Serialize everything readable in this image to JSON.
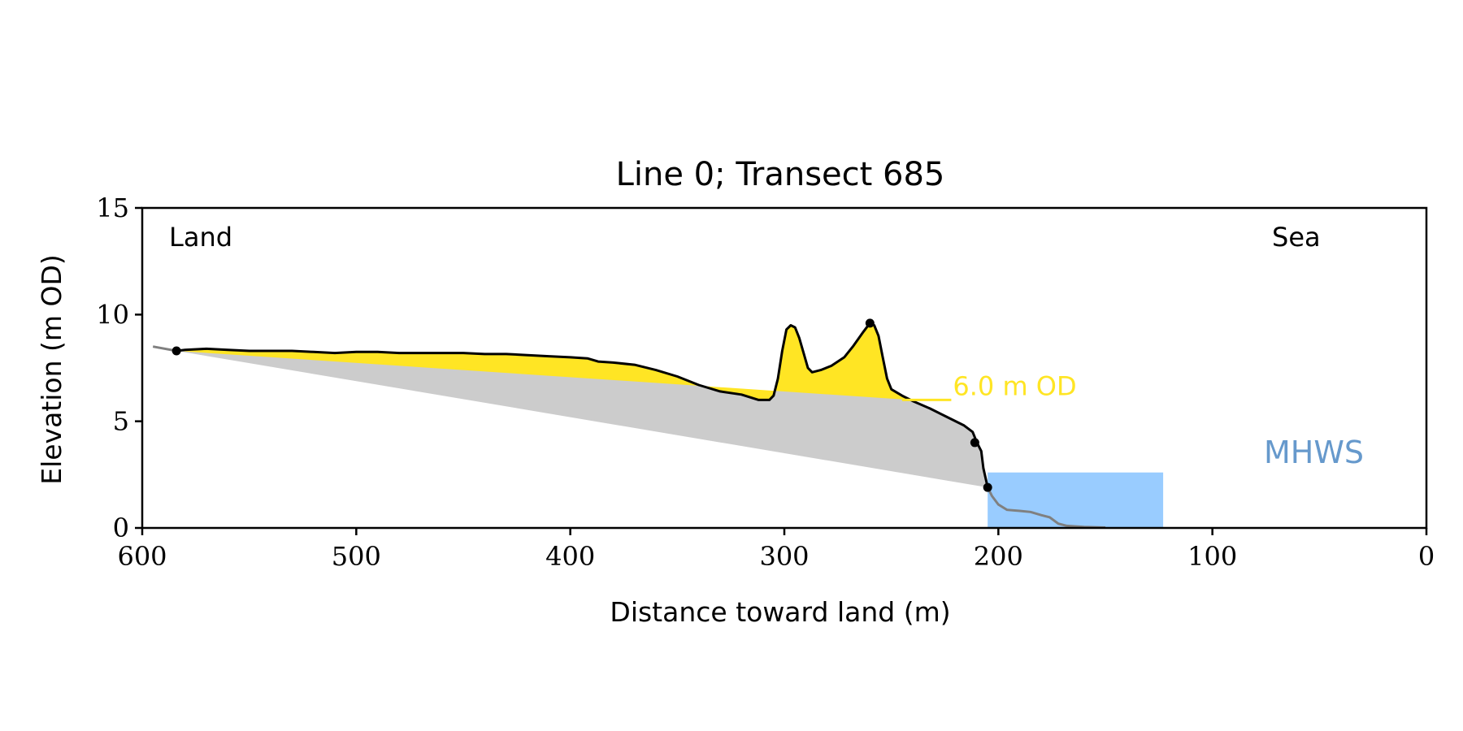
{
  "chart_data": {
    "type": "area",
    "title": "Line 0; Transect 685",
    "xlabel": "Distance toward land (m)",
    "ylabel": "Elevation (m OD)",
    "xlim": [
      600,
      0
    ],
    "ylim": [
      0,
      15
    ],
    "xticks": [
      600,
      500,
      400,
      300,
      200,
      100,
      0
    ],
    "yticks": [
      0,
      5,
      10,
      15
    ],
    "grid": false,
    "annotations": {
      "land": "Land",
      "sea": "Sea",
      "mhws": "MHWS",
      "threshold": "6.0 m OD"
    },
    "colors": {
      "profile": "#000000",
      "profile_ext": "#808080",
      "volume_fill": "#cccccc",
      "dune_fill": "#ffe524",
      "threshold": "#ffe524",
      "water": "#99ccff",
      "mhws_text": "#6699cc"
    },
    "threshold_level": 6.0,
    "threshold_x": [
      245,
      222
    ],
    "water": {
      "x": [
        205,
        123
      ],
      "top": 2.6
    },
    "profile": [
      [
        584,
        8.3
      ],
      [
        580,
        8.35
      ],
      [
        570,
        8.4
      ],
      [
        560,
        8.35
      ],
      [
        550,
        8.3
      ],
      [
        540,
        8.3
      ],
      [
        530,
        8.3
      ],
      [
        520,
        8.25
      ],
      [
        510,
        8.2
      ],
      [
        500,
        8.25
      ],
      [
        490,
        8.25
      ],
      [
        480,
        8.2
      ],
      [
        470,
        8.2
      ],
      [
        460,
        8.2
      ],
      [
        450,
        8.2
      ],
      [
        440,
        8.15
      ],
      [
        430,
        8.15
      ],
      [
        420,
        8.1
      ],
      [
        410,
        8.05
      ],
      [
        400,
        8.0
      ],
      [
        392,
        7.95
      ],
      [
        387,
        7.8
      ],
      [
        380,
        7.75
      ],
      [
        370,
        7.65
      ],
      [
        360,
        7.4
      ],
      [
        350,
        7.1
      ],
      [
        340,
        6.7
      ],
      [
        330,
        6.4
      ],
      [
        320,
        6.25
      ],
      [
        312,
        6.0
      ],
      [
        307,
        6.0
      ],
      [
        305,
        6.2
      ],
      [
        303,
        7.0
      ],
      [
        301,
        8.3
      ],
      [
        299,
        9.3
      ],
      [
        297,
        9.5
      ],
      [
        295,
        9.4
      ],
      [
        293,
        8.9
      ],
      [
        291,
        8.2
      ],
      [
        289,
        7.5
      ],
      [
        287,
        7.3
      ],
      [
        283,
        7.4
      ],
      [
        278,
        7.6
      ],
      [
        272,
        8.0
      ],
      [
        268,
        8.5
      ],
      [
        263,
        9.2
      ],
      [
        260,
        9.6
      ],
      [
        258,
        9.5
      ],
      [
        256,
        9.0
      ],
      [
        254,
        8.0
      ],
      [
        252,
        7.0
      ],
      [
        250,
        6.5
      ],
      [
        245,
        6.2
      ],
      [
        240,
        5.95
      ],
      [
        232,
        5.6
      ],
      [
        224,
        5.2
      ],
      [
        216,
        4.8
      ],
      [
        212,
        4.5
      ],
      [
        210,
        4.0
      ],
      [
        208,
        3.6
      ],
      [
        207,
        2.8
      ],
      [
        205,
        1.9
      ]
    ],
    "profile_ext_landward": [
      [
        595,
        8.5
      ],
      [
        584,
        8.3
      ]
    ],
    "profile_ext_seaward": [
      [
        205,
        1.9
      ],
      [
        203,
        1.5
      ],
      [
        200,
        1.1
      ],
      [
        196,
        0.85
      ],
      [
        190,
        0.8
      ],
      [
        185,
        0.75
      ],
      [
        180,
        0.6
      ],
      [
        176,
        0.5
      ],
      [
        172,
        0.2
      ],
      [
        168,
        0.1
      ],
      [
        160,
        0.05
      ],
      [
        150,
        0.02
      ]
    ],
    "markers": [
      [
        584,
        8.3
      ],
      [
        260,
        9.6
      ],
      [
        211,
        4.0
      ],
      [
        205,
        1.9
      ]
    ]
  }
}
